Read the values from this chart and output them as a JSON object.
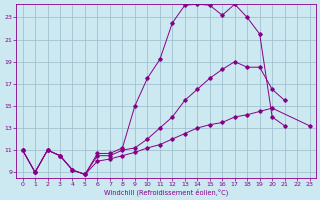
{
  "xlabel": "Windchill (Refroidissement éolien,°C)",
  "line_color": "#880088",
  "bg_color": "#cce8f0",
  "grid_color": "#99bbcc",
  "xlim": [
    -0.5,
    23.5
  ],
  "ylim": [
    8.5,
    24.2
  ],
  "xticks": [
    0,
    1,
    2,
    3,
    4,
    5,
    6,
    7,
    8,
    9,
    10,
    11,
    12,
    13,
    14,
    15,
    16,
    17,
    18,
    19,
    20,
    21,
    22,
    23
  ],
  "yticks": [
    9,
    11,
    13,
    15,
    17,
    19,
    21,
    23
  ],
  "line1_x": [
    0,
    1,
    2,
    3,
    4,
    5,
    6,
    7,
    8,
    9,
    10,
    11,
    12,
    13,
    14,
    15,
    16,
    17,
    18,
    19,
    20,
    21,
    22,
    23
  ],
  "line1_y": [
    11,
    9,
    11,
    10.5,
    9.2,
    8.8,
    10.7,
    10.7,
    11.2,
    15.0,
    17.5,
    19.2,
    22.5,
    24.1,
    24.2,
    24.1,
    23.2,
    24.2,
    23.0,
    21.5,
    14.0,
    13.2,
    null,
    null
  ],
  "line2_x": [
    0,
    1,
    2,
    3,
    4,
    5,
    6,
    7,
    8,
    9,
    10,
    11,
    12,
    13,
    14,
    15,
    16,
    17,
    18,
    19,
    20,
    21,
    22,
    23
  ],
  "line2_y": [
    11,
    9,
    11,
    10.5,
    9.2,
    8.8,
    10.5,
    10.5,
    11.0,
    11.2,
    12.0,
    13.0,
    14.0,
    15.5,
    16.5,
    17.5,
    18.3,
    19.0,
    18.5,
    18.5,
    16.5,
    15.5,
    null,
    null
  ],
  "line3_x": [
    0,
    1,
    2,
    3,
    4,
    5,
    6,
    7,
    8,
    9,
    10,
    11,
    12,
    13,
    14,
    15,
    16,
    17,
    18,
    19,
    20,
    21,
    22,
    23
  ],
  "line3_y": [
    11,
    9,
    11,
    10.5,
    9.2,
    8.8,
    10.0,
    10.2,
    10.5,
    10.8,
    11.2,
    11.5,
    12.0,
    12.5,
    13.0,
    13.3,
    13.5,
    14.0,
    14.2,
    14.5,
    14.8,
    null,
    null,
    13.2
  ]
}
